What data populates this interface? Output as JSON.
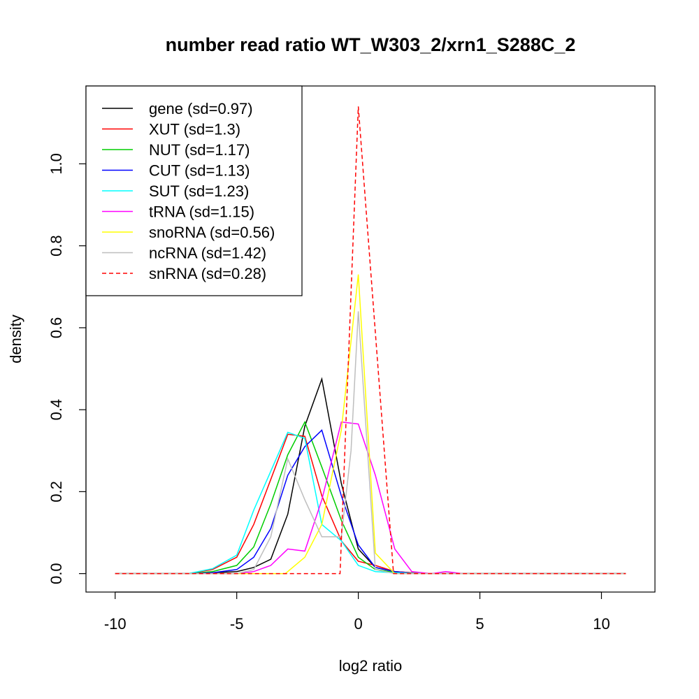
{
  "chart_data": {
    "type": "line",
    "title": "number read ratio WT_W303_2/xrn1_S288C_2",
    "xlabel": "log2 ratio",
    "ylabel": "density",
    "xlim": [
      -11.2,
      12.2
    ],
    "ylim": [
      -0.045,
      1.19
    ],
    "x_ticks": [
      -10,
      -5,
      0,
      5,
      10
    ],
    "x_tick_labels": [
      "-10",
      "-5",
      "0",
      "5",
      "10"
    ],
    "y_ticks": [
      0,
      0.2,
      0.4,
      0.6,
      0.8,
      1.0
    ],
    "y_tick_labels": [
      "0.0",
      "0.2",
      "0.4",
      "0.6",
      "0.8",
      "1.0"
    ],
    "grid": false,
    "legend_position": "top-left",
    "series": [
      {
        "name": "gene (sd=0.97)",
        "color": "#000000",
        "dash": false,
        "x": [
          -10,
          -7,
          -6,
          -5,
          -4.3,
          -3.6,
          -2.9,
          -2.2,
          -1.5,
          -0.7,
          0,
          0.7,
          1.5,
          2.2,
          3,
          11
        ],
        "y": [
          0,
          0,
          0.002,
          0.005,
          0.015,
          0.035,
          0.145,
          0.36,
          0.475,
          0.22,
          0.06,
          0.015,
          0.005,
          0.002,
          0,
          0
        ]
      },
      {
        "name": "XUT (sd=1.3)",
        "color": "#ff0000",
        "dash": false,
        "x": [
          -10,
          -7,
          -6,
          -5,
          -4.3,
          -3.6,
          -2.9,
          -2.2,
          -1.5,
          -0.7,
          0,
          0.7,
          1.5,
          2.2,
          3,
          11
        ],
        "y": [
          0,
          0,
          0.01,
          0.04,
          0.12,
          0.23,
          0.34,
          0.335,
          0.19,
          0.08,
          0.03,
          0.02,
          0.005,
          0.002,
          0,
          0
        ]
      },
      {
        "name": "NUT (sd=1.17)",
        "color": "#00cd00",
        "dash": false,
        "x": [
          -10,
          -7,
          -6,
          -5,
          -4.3,
          -3.6,
          -2.9,
          -2.2,
          -1.5,
          -0.7,
          0,
          0.7,
          1.5,
          2.2,
          3,
          11
        ],
        "y": [
          0,
          0,
          0.005,
          0.02,
          0.065,
          0.17,
          0.29,
          0.37,
          0.26,
          0.13,
          0.04,
          0.01,
          0.003,
          0.001,
          0,
          0
        ]
      },
      {
        "name": "CUT (sd=1.13)",
        "color": "#0000ff",
        "dash": false,
        "x": [
          -10,
          -7,
          -6,
          -5,
          -4.3,
          -3.6,
          -2.9,
          -2.2,
          -1.5,
          -0.7,
          0,
          0.7,
          1.5,
          2.2,
          3,
          11
        ],
        "y": [
          0,
          0,
          0.002,
          0.01,
          0.04,
          0.11,
          0.24,
          0.31,
          0.35,
          0.19,
          0.07,
          0.015,
          0.005,
          0.001,
          0,
          0
        ]
      },
      {
        "name": "SUT (sd=1.23)",
        "color": "#00ffff",
        "dash": false,
        "x": [
          -10,
          -7,
          -6,
          -5,
          -4.3,
          -3.6,
          -2.9,
          -2.2,
          -1.5,
          -0.7,
          0,
          0.7,
          1.5,
          2.2,
          3,
          11
        ],
        "y": [
          0,
          0,
          0.012,
          0.045,
          0.155,
          0.25,
          0.345,
          0.33,
          0.12,
          0.08,
          0.02,
          0.005,
          0.002,
          0.001,
          0,
          0
        ]
      },
      {
        "name": "tRNA (sd=1.15)",
        "color": "#ff00ff",
        "dash": false,
        "x": [
          -10,
          -5,
          -4.3,
          -3.6,
          -2.9,
          -2.2,
          -1.5,
          -0.7,
          0,
          0.7,
          1.5,
          2.2,
          3,
          3.6,
          4.3,
          11
        ],
        "y": [
          0,
          0,
          0.005,
          0.02,
          0.06,
          0.055,
          0.18,
          0.37,
          0.365,
          0.24,
          0.06,
          0.005,
          0,
          0.005,
          0,
          0
        ]
      },
      {
        "name": "snoRNA (sd=0.56)",
        "color": "#ffff00",
        "dash": false,
        "x": [
          -10,
          -3,
          -2.2,
          -1.5,
          -0.7,
          0,
          0.7,
          1.5,
          11
        ],
        "y": [
          0,
          0,
          0.04,
          0.12,
          0.35,
          0.73,
          0.05,
          0,
          0
        ]
      },
      {
        "name": "ncRNA (sd=1.42)",
        "color": "#bebebe",
        "dash": false,
        "x": [
          -10,
          -5,
          -4.3,
          -3.6,
          -2.9,
          -2.2,
          -1.5,
          -0.7,
          -0.3,
          0,
          0.7,
          1.5,
          11
        ],
        "y": [
          0,
          0,
          0.01,
          0.09,
          0.28,
          0.18,
          0.09,
          0.09,
          0.3,
          0.64,
          0.01,
          0,
          0
        ]
      },
      {
        "name": "snRNA (sd=0.28)",
        "color": "#ff0000",
        "dash": true,
        "x": [
          -10,
          -0.75,
          0,
          1.45,
          11
        ],
        "y": [
          0,
          0,
          1.14,
          0,
          0
        ]
      }
    ]
  }
}
